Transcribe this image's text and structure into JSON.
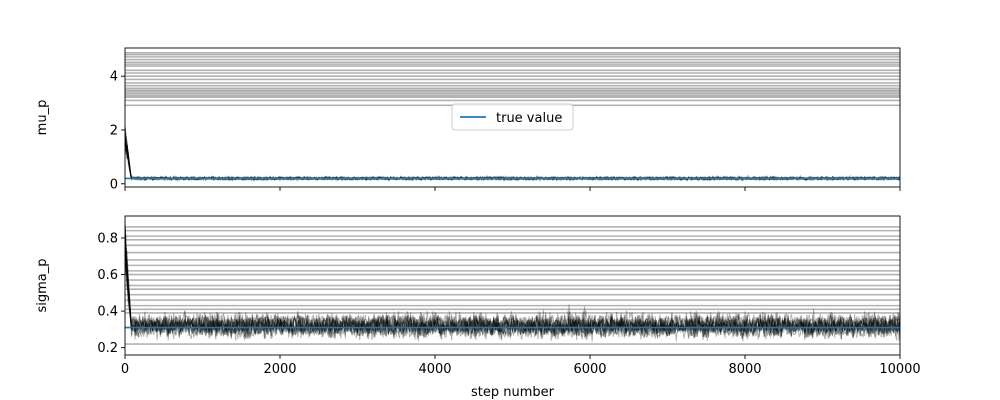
{
  "chart_data": [
    {
      "type": "line",
      "ylabel": "mu_p",
      "xlim": [
        0,
        10000
      ],
      "ylim": [
        -0.12,
        5.05
      ],
      "yticks": [
        0,
        2,
        4
      ],
      "show_xtick_labels": false,
      "grid": false,
      "true_value": 0.2,
      "true_value_color": "#1f77b4",
      "trace_color": "#000000",
      "legend": {
        "placement": "center",
        "entries": [
          "true value"
        ]
      },
      "series": [
        {
          "values": [
            4.87,
            4.8,
            4.72,
            4.62,
            4.52,
            4.45,
            4.38,
            4.22,
            4.12,
            4.0,
            3.88,
            3.75,
            3.65,
            3.55,
            3.48,
            3.42,
            3.35,
            3.28,
            3.22,
            3.1,
            2.92
          ]
        },
        {
          "burn_in_start": 2.35,
          "burn_in_steps": 80,
          "stationary_mean": 0.2,
          "stationary_spread": 0.05,
          "steps": 10000
        }
      ]
    },
    {
      "type": "line",
      "ylabel": "sigma_p",
      "xlabel": "step number",
      "xlim": [
        0,
        10000
      ],
      "ylim": [
        0.16,
        0.92
      ],
      "yticks": [
        0.2,
        0.4,
        0.6,
        0.8
      ],
      "xticks": [
        0,
        2000,
        4000,
        6000,
        8000,
        10000
      ],
      "grid": false,
      "true_value": 0.31,
      "true_value_color": "#1f77b4",
      "trace_color": "#000000",
      "series": [
        {
          "values": [
            0.86,
            0.84,
            0.81,
            0.79,
            0.76,
            0.72,
            0.68,
            0.65,
            0.62,
            0.6,
            0.57,
            0.54,
            0.52,
            0.49,
            0.46,
            0.43,
            0.41,
            0.39,
            0.22
          ]
        },
        {
          "burn_in_start": 0.9,
          "burn_in_steps": 80,
          "stationary_mean": 0.32,
          "stationary_spread": 0.05,
          "steps": 10000
        }
      ]
    }
  ]
}
